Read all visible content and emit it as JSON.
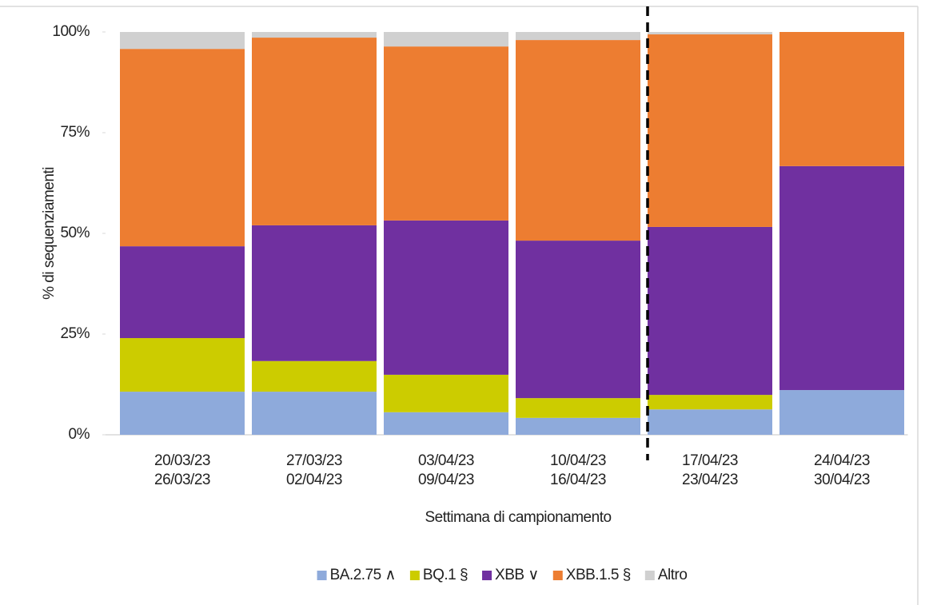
{
  "chart_data": {
    "type": "stacked_bar",
    "y_axis_label": "% di sequenziamenti",
    "x_axis_label": "Settimana di campionamento",
    "categories": [
      [
        "20/03/23",
        "26/03/23"
      ],
      [
        "27/03/23",
        "02/04/23"
      ],
      [
        "03/04/23",
        "09/04/23"
      ],
      [
        "10/04/23",
        "16/04/23"
      ],
      [
        "17/04/23",
        "23/04/23"
      ],
      [
        "24/04/23",
        "30/04/23"
      ]
    ],
    "series": [
      {
        "name": "BA.2.75 ∧",
        "color": "#8eaadb",
        "values": [
          10.7,
          10.7,
          5.6,
          4.2,
          6.3,
          11.1
        ]
      },
      {
        "name": "BQ.1 §",
        "color": "#cccc00",
        "values": [
          13.3,
          7.6,
          9.3,
          4.9,
          3.6,
          0
        ]
      },
      {
        "name": "XBB ∨",
        "color": "#7030a0",
        "values": [
          22.8,
          33.7,
          38.3,
          39.1,
          41.7,
          55.6
        ]
      },
      {
        "name": "XBB.1.5 §",
        "color": "#ed7d31",
        "values": [
          49.0,
          46.6,
          43.2,
          49.8,
          47.8,
          33.3
        ]
      },
      {
        "name": "Altro",
        "color": "#d0d0d0",
        "values": [
          4.2,
          1.4,
          3.6,
          2.0,
          0.6,
          0
        ]
      }
    ],
    "ylim": [
      0,
      100
    ],
    "yticks": [
      {
        "value": 0,
        "label": "0%"
      },
      {
        "value": 25,
        "label": "25%"
      },
      {
        "value": 50,
        "label": "50%"
      },
      {
        "value": 75,
        "label": "75%"
      },
      {
        "value": 100,
        "label": "100%"
      }
    ],
    "legend": "bottom"
  }
}
